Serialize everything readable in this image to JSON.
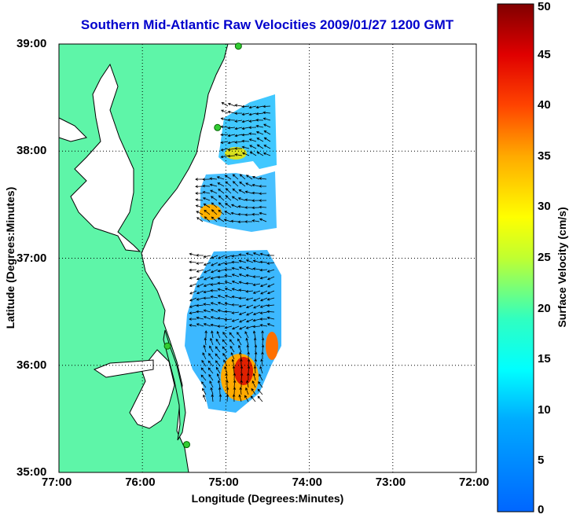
{
  "title": "Southern Mid-Atlantic Raw Velocities 2009/01/27 1200 GMT",
  "xlabel": "Longitude (Degrees:Minutes)",
  "ylabel": "Latitude (Degrees:Minutes)",
  "colorbar": {
    "label": "Surface Velocity (cm/s)",
    "ticks": [
      "0",
      "5",
      "10",
      "15",
      "20",
      "25",
      "30",
      "35",
      "40",
      "45",
      "50"
    ],
    "min": 0,
    "max": 50,
    "colormap": "jet"
  },
  "chart_data": {
    "type": "map",
    "x_ticks": [
      "77:00",
      "76:00",
      "75:00",
      "74:00",
      "73:00",
      "72:00"
    ],
    "y_ticks": [
      "39:00",
      "38:00",
      "37:00",
      "36:00",
      "35:00"
    ],
    "xlim": [
      -77,
      -72
    ],
    "ylim": [
      35,
      39
    ],
    "grid": "dotted",
    "colors": {
      "land": "#5ef5a8",
      "coastline": "#000000",
      "bathymetry": "#9a9a9a",
      "station": "#33cc33",
      "title": "#0000cc"
    },
    "stations": [
      {
        "lon": -74.85,
        "lat": 38.98
      },
      {
        "lon": -75.1,
        "lat": 38.22
      },
      {
        "lon": -75.7,
        "lat": 36.18
      },
      {
        "lon": -75.47,
        "lat": 35.26
      }
    ]
  }
}
